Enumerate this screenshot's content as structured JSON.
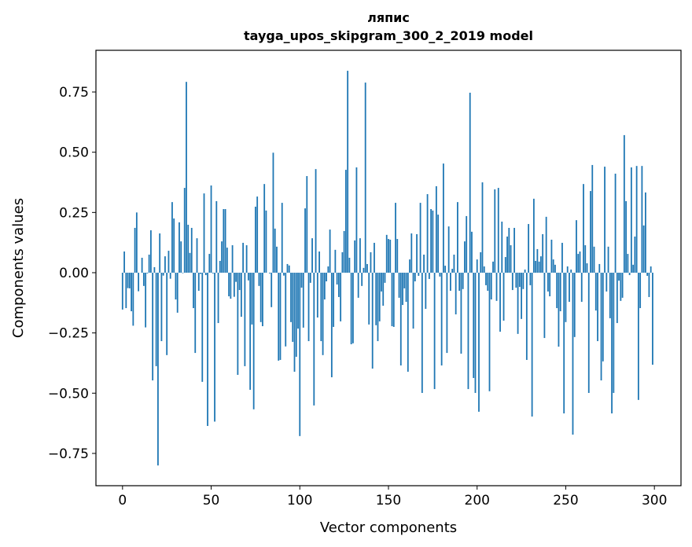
{
  "chart_data": {
    "type": "bar",
    "title": [
      "ляпис",
      "tayga_upos_skipgram_300_2_2019 model"
    ],
    "xlabel": "Vector components",
    "ylabel": "Components values",
    "xlim": [
      -15,
      315
    ],
    "ylim": [
      -0.884,
      0.923
    ],
    "grid": false,
    "bar_color": "#1f77b4",
    "xticks": [
      0,
      50,
      100,
      150,
      200,
      250,
      300
    ],
    "xtick_labels": [
      "0",
      "50",
      "100",
      "150",
      "200",
      "250",
      "300"
    ],
    "yticks": [
      -0.75,
      -0.5,
      -0.25,
      0,
      0.25,
      0.5,
      0.75
    ],
    "ytick_labels": [
      "−0.75",
      "−0.50",
      "−0.25",
      "0.00",
      "0.25",
      "0.50",
      "0.75"
    ],
    "values": [
      -0.153,
      0.088,
      -0.147,
      -0.064,
      -0.065,
      -0.16,
      -0.22,
      0.186,
      0.25,
      -0.077,
      0,
      0.062,
      -0.055,
      -0.227,
      -0.003,
      0.075,
      0.176,
      -0.447,
      0.023,
      -0.388,
      -0.8,
      0.163,
      -0.284,
      -0.012,
      0.068,
      -0.342,
      0.091,
      -0.025,
      0.293,
      0.225,
      -0.111,
      -0.166,
      0.209,
      0.13,
      -0.002,
      0.352,
      0.792,
      0.199,
      0.082,
      0.186,
      -0.147,
      -0.333,
      0.143,
      -0.075,
      -0.005,
      -0.453,
      0.329,
      -0.01,
      -0.636,
      0.078,
      0.362,
      -0.003,
      -0.618,
      0.297,
      -0.209,
      0.049,
      0.13,
      0.264,
      0.264,
      0.104,
      -0.098,
      -0.108,
      0.114,
      -0.1,
      -0.038,
      -0.424,
      -0.072,
      -0.183,
      0.124,
      -0.388,
      0.114,
      -0.032,
      -0.486,
      -0.215,
      -0.567,
      0.274,
      0.316,
      -0.055,
      -0.205,
      -0.222,
      0.368,
      0.258,
      0,
      -0.003,
      -0.143,
      0.498,
      0.183,
      0.108,
      -0.365,
      -0.362,
      0.29,
      -0.012,
      -0.306,
      0.036,
      0.03,
      -0.205,
      -0.287,
      -0.411,
      -0.349,
      -0.232,
      -0.678,
      -0.062,
      -0.228,
      0.267,
      0.401,
      -0.284,
      -0.042,
      0.143,
      -0.551,
      0.43,
      -0.186,
      0.088,
      -0.284,
      -0.342,
      -0.111,
      -0.036,
      0.026,
      0.179,
      -0.434,
      -0.225,
      0.095,
      -0.049,
      -0.101,
      -0.202,
      0.085,
      0.173,
      0.427,
      0.838,
      0.062,
      -0.297,
      -0.293,
      0.134,
      0.437,
      -0.104,
      0.143,
      -0.055,
      0.02,
      0.789,
      0.036,
      -0.215,
      0.085,
      -0.398,
      0.124,
      -0.218,
      -0.284,
      -0.202,
      -0.078,
      -0.137,
      -0.042,
      0.157,
      0.14,
      0.137,
      -0.222,
      -0.225,
      0.29,
      0.14,
      -0.104,
      -0.385,
      -0.134,
      -0.065,
      -0.121,
      -0.411,
      0.055,
      0.163,
      -0.232,
      -0.036,
      0.16,
      -0.013,
      0.29,
      -0.499,
      0.075,
      -0.15,
      0.326,
      -0.026,
      0.264,
      0.258,
      -0.483,
      0.359,
      0.241,
      -0.016,
      -0.385,
      0.453,
      0.029,
      -0.333,
      0.192,
      -0.075,
      0.016,
      0.075,
      -0.173,
      0.293,
      -0.075,
      -0.336,
      -0.068,
      0.13,
      0.235,
      -0.483,
      0.747,
      0.17,
      -0.437,
      -0.499,
      0.055,
      -0.577,
      0.085,
      0.375,
      0.026,
      -0.052,
      -0.075,
      -0.492,
      -0.111,
      0.046,
      0.346,
      -0.117,
      0.352,
      -0.245,
      0.212,
      -0.199,
      0.065,
      0.15,
      0.186,
      0.114,
      -0.072,
      0.186,
      -0.062,
      -0.254,
      -0.059,
      -0.192,
      -0.068,
      0.013,
      -0.362,
      0.202,
      -0.052,
      -0.597,
      0.307,
      0.049,
      0.098,
      0.046,
      0.068,
      0.16,
      -0.271,
      0.232,
      -0.078,
      -0.098,
      0.137,
      0.055,
      0.033,
      -0.147,
      -0.307,
      -0.16,
      0.124,
      -0.584,
      -0.205,
      0.026,
      -0.121,
      0.013,
      -0.672,
      -0.267,
      0.218,
      0.078,
      0.088,
      -0.121,
      0.368,
      0.114,
      0.039,
      -0.499,
      0.339,
      0.447,
      0.108,
      -0.157,
      -0.284,
      0.036,
      -0.447,
      -0.368,
      0.44,
      -0.078,
      0.108,
      -0.189,
      -0.584,
      -0.499,
      0.411,
      -0.209,
      -0.033,
      -0.117,
      -0.104,
      0.571,
      0.297,
      0.078,
      -0.01,
      0.437,
      0.033,
      0.15,
      0.443,
      -0.528,
      -0.147,
      0.443,
      0.196,
      0.333,
      -0.013,
      -0.101,
      0.026,
      -0.382
    ]
  }
}
